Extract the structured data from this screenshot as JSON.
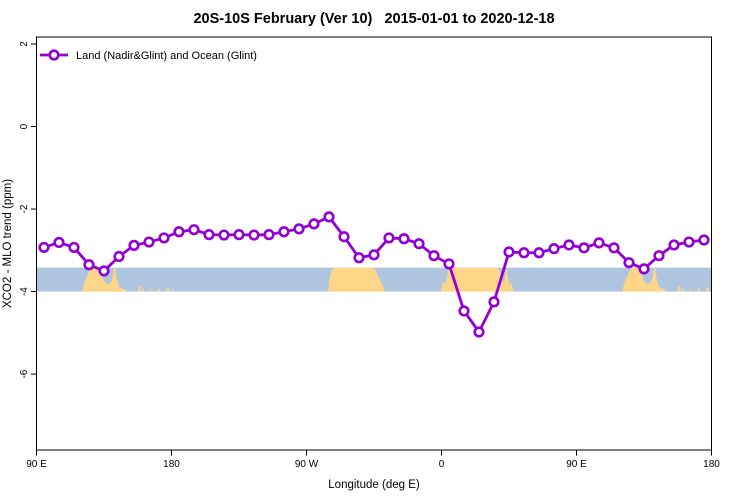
{
  "title": "20S-10S February (Ver 10)   2015-01-01 to 2020-12-18",
  "legend": {
    "label": "Land (Nadir&Glint) and Ocean (Glint)"
  },
  "axes": {
    "x_label": "Longitude (deg E)",
    "y_label": "XCO2 - MLO trend (ppm)",
    "x_ticks": [
      {
        "value": 90,
        "label": "90 E"
      },
      {
        "value": 180,
        "label": "180"
      },
      {
        "value": 270,
        "label": "90 W"
      },
      {
        "value": 360,
        "label": "0"
      },
      {
        "value": 450,
        "label": "90 E"
      },
      {
        "value": 540,
        "label": "180"
      }
    ],
    "y_ticks": [
      {
        "value": 2,
        "label": "2"
      },
      {
        "value": 0,
        "label": "0"
      },
      {
        "value": -2,
        "label": "-2"
      },
      {
        "value": -4,
        "label": "-4"
      },
      {
        "value": -6,
        "label": "-6"
      }
    ]
  },
  "colors": {
    "line": "#9400D3",
    "marker_fill": "#ffffff",
    "ocean_strip": "#AFC4DE",
    "land": "#FFD588",
    "axis": "#000000",
    "tick_text": "#1a1a1a"
  },
  "chart_data": {
    "type": "line",
    "title": "20S-10S February (Ver 10)   2015-01-01 to 2020-12-18",
    "xlabel": "Longitude (deg E)",
    "ylabel": "XCO2 - MLO trend (ppm)",
    "xlim": [
      90,
      540
    ],
    "ylim": [
      -7.84,
      2.17
    ],
    "grid": false,
    "legend_position": "top-left",
    "series": [
      {
        "name": "Land (Nadir&Glint) and Ocean (Glint)",
        "marker": "open-circle",
        "x": [
          95,
          105,
          115,
          125,
          135,
          145,
          155,
          165,
          175,
          185,
          195,
          205,
          215,
          225,
          235,
          245,
          255,
          265,
          275,
          285,
          295,
          305,
          315,
          325,
          335,
          345,
          355,
          365,
          375,
          385,
          395,
          405,
          415,
          425,
          435,
          445,
          455,
          465,
          475,
          485,
          495,
          505,
          515,
          525,
          535
        ],
        "y": [
          -2.93,
          -2.81,
          -2.93,
          -3.35,
          -3.5,
          -3.15,
          -2.88,
          -2.8,
          -2.7,
          -2.55,
          -2.5,
          -2.62,
          -2.63,
          -2.62,
          -2.63,
          -2.62,
          -2.55,
          -2.48,
          -2.36,
          -2.19,
          -2.67,
          -3.18,
          -3.11,
          -2.7,
          -2.72,
          -2.84,
          -3.13,
          -3.33,
          -4.47,
          -4.98,
          -4.25,
          -3.04,
          -3.06,
          -3.06,
          -2.96,
          -2.87,
          -2.94,
          -2.82,
          -2.94,
          -3.3,
          -3.45,
          -3.13,
          -2.87,
          -2.8,
          -2.75
        ]
      }
    ],
    "map_strip": {
      "description": "land/ocean strip along longitude",
      "y_range": [
        -4.0,
        -3.42
      ],
      "land_regions": [
        {
          "name": "australia",
          "profile": [
            [
              120.5,
              0
            ],
            [
              122,
              0.4
            ],
            [
              124,
              0.65
            ],
            [
              126,
              0.95
            ],
            [
              128,
              1
            ],
            [
              132,
              1
            ],
            [
              133.5,
              0.7
            ],
            [
              135,
              0.45
            ],
            [
              137,
              0.3
            ],
            [
              139,
              0.35
            ],
            [
              140.5,
              0.5
            ],
            [
              141.5,
              0.95
            ],
            [
              142.5,
              1
            ],
            [
              143.5,
              0.5
            ],
            [
              145,
              0.2
            ],
            [
              147,
              0.12
            ],
            [
              149,
              0.08
            ],
            [
              150.5,
              0
            ]
          ]
        },
        {
          "name": "south-america",
          "profile": [
            [
              284.5,
              0
            ],
            [
              285.5,
              0.6
            ],
            [
              287,
              0.9
            ],
            [
              289,
              1
            ],
            [
              314,
              1
            ],
            [
              316,
              0.9
            ],
            [
              318,
              0.6
            ],
            [
              320,
              0.35
            ],
            [
              321.5,
              0.15
            ],
            [
              322.5,
              0
            ]
          ]
        },
        {
          "name": "africa-madagascar",
          "profile": [
            [
              359.5,
              0
            ],
            [
              360.5,
              0.25
            ],
            [
              361.5,
              0.45
            ],
            [
              362.5,
              0.3
            ],
            [
              363.5,
              0.5
            ],
            [
              364.5,
              0.9
            ],
            [
              366,
              1
            ],
            [
              397,
              1
            ],
            [
              399,
              0.85
            ],
            [
              400.5,
              0.55
            ],
            [
              401.5,
              0.3
            ],
            [
              402.5,
              0.75
            ],
            [
              403.5,
              0.95
            ],
            [
              404.5,
              0.5
            ],
            [
              405.5,
              0.25
            ],
            [
              406.5,
              0.4
            ],
            [
              407.5,
              0.15
            ],
            [
              408.5,
              0
            ]
          ]
        },
        {
          "name": "australia-wrap",
          "profile": [
            [
              480.5,
              0
            ],
            [
              482,
              0.4
            ],
            [
              484,
              0.65
            ],
            [
              486,
              0.95
            ],
            [
              488,
              1
            ],
            [
              492,
              1
            ],
            [
              493.5,
              0.7
            ],
            [
              495,
              0.45
            ],
            [
              497,
              0.3
            ],
            [
              499,
              0.35
            ],
            [
              500.5,
              0.5
            ],
            [
              501.5,
              0.95
            ],
            [
              502.5,
              1
            ],
            [
              503.5,
              0.5
            ],
            [
              505,
              0.2
            ],
            [
              507,
              0.12
            ],
            [
              509,
              0.08
            ],
            [
              510.5,
              0
            ]
          ]
        }
      ],
      "islands": [
        {
          "deg": 158.5,
          "frac": 0.22,
          "width": 1.5
        },
        {
          "deg": 161.0,
          "frac": 0.12,
          "width": 1.2
        },
        {
          "deg": 166.0,
          "frac": 0.1,
          "width": 1.0
        },
        {
          "deg": 171.5,
          "frac": 0.12,
          "width": 1.2
        },
        {
          "deg": 177.5,
          "frac": 0.18,
          "width": 1.5
        },
        {
          "deg": 181.0,
          "frac": 0.1,
          "width": 1.0
        },
        {
          "deg": 518.5,
          "frac": 0.22,
          "width": 1.5
        },
        {
          "deg": 521.0,
          "frac": 0.12,
          "width": 1.2
        },
        {
          "deg": 526.0,
          "frac": 0.1,
          "width": 1.0
        },
        {
          "deg": 531.5,
          "frac": 0.12,
          "width": 1.2
        },
        {
          "deg": 537.5,
          "frac": 0.18,
          "width": 1.5
        }
      ]
    }
  }
}
